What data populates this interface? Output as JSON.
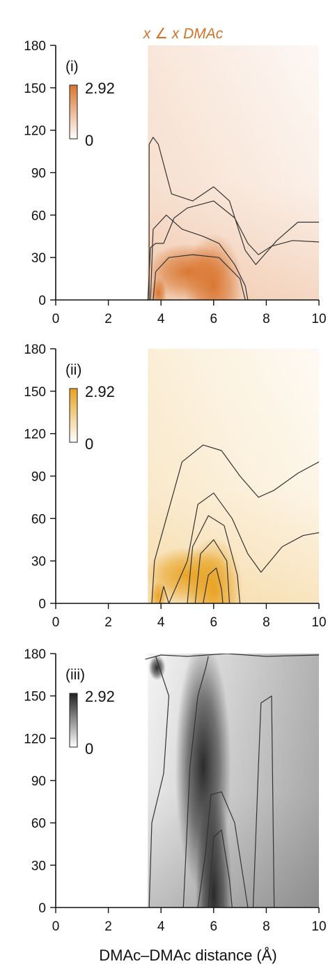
{
  "figure": {
    "top_label": "x ∠ x DMAc",
    "top_label_color": "#d0732a",
    "xlabel": "DMAc–DMAc distance (Å)"
  },
  "chart_data": [
    {
      "type": "heatmap",
      "tag": "(i)",
      "colormap_color": "#d9742d",
      "colorbar": {
        "max_label": "2.92",
        "min_label": "0",
        "range": [
          0,
          2.92
        ]
      },
      "xlim": [
        0,
        10
      ],
      "ylim": [
        0,
        180
      ],
      "x_ticks": [
        "0",
        "2",
        "4",
        "6",
        "8",
        "10"
      ],
      "y_ticks": [
        "0",
        "30",
        "60",
        "90",
        "120",
        "150",
        "180"
      ],
      "contour_lines": [
        [
          [
            3.55,
            0
          ],
          [
            3.55,
            110
          ],
          [
            3.7,
            115
          ],
          [
            3.9,
            110
          ],
          [
            4.4,
            75
          ],
          [
            5.2,
            70
          ],
          [
            6.0,
            80
          ],
          [
            6.6,
            70
          ],
          [
            7.2,
            35
          ],
          [
            7.6,
            25
          ],
          [
            8.4,
            42
          ],
          [
            9.2,
            55
          ],
          [
            10.0,
            55
          ]
        ],
        [
          [
            3.6,
            0
          ],
          [
            3.7,
            50
          ],
          [
            4.2,
            60
          ],
          [
            4.8,
            50
          ],
          [
            5.6,
            45
          ],
          [
            6.2,
            40
          ],
          [
            6.8,
            25
          ],
          [
            7.2,
            10
          ],
          [
            7.3,
            0
          ]
        ],
        [
          [
            3.7,
            0
          ],
          [
            3.8,
            20
          ],
          [
            4.3,
            30
          ],
          [
            5.2,
            32
          ],
          [
            6.2,
            30
          ],
          [
            7.0,
            15
          ],
          [
            7.2,
            0
          ]
        ],
        [
          [
            3.5,
            0
          ],
          [
            3.6,
            37
          ],
          [
            3.8,
            40
          ],
          [
            4.1,
            40
          ],
          [
            4.5,
            58
          ],
          [
            5.0,
            65
          ],
          [
            6.0,
            70
          ],
          [
            6.8,
            58
          ],
          [
            7.3,
            40
          ],
          [
            7.7,
            32
          ],
          [
            8.2,
            38
          ],
          [
            9.0,
            42
          ],
          [
            10.0,
            41
          ]
        ]
      ]
    },
    {
      "type": "heatmap",
      "tag": "(ii)",
      "colormap_color": "#e8a11f",
      "colorbar": {
        "max_label": "2.92",
        "min_label": "0",
        "range": [
          0,
          2.92
        ]
      },
      "xlim": [
        0,
        10
      ],
      "ylim": [
        0,
        180
      ],
      "x_ticks": [
        "0",
        "2",
        "4",
        "6",
        "8",
        "10"
      ],
      "y_ticks": [
        "0",
        "30",
        "60",
        "90",
        "120",
        "150",
        "180"
      ],
      "contour_lines": [
        [
          [
            3.65,
            0
          ],
          [
            3.75,
            30
          ],
          [
            4.2,
            60
          ],
          [
            4.8,
            100
          ],
          [
            5.6,
            112
          ],
          [
            6.3,
            108
          ],
          [
            7.0,
            90
          ],
          [
            7.7,
            75
          ],
          [
            8.3,
            80
          ],
          [
            9.2,
            92
          ],
          [
            10.0,
            100
          ]
        ],
        [
          [
            4.3,
            0
          ],
          [
            5.0,
            30
          ],
          [
            5.4,
            70
          ],
          [
            6.0,
            78
          ],
          [
            6.7,
            60
          ],
          [
            7.3,
            35
          ],
          [
            7.8,
            22
          ],
          [
            8.6,
            40
          ],
          [
            9.4,
            48
          ],
          [
            10.0,
            50
          ]
        ],
        [
          [
            3.95,
            0
          ],
          [
            4.1,
            12
          ],
          [
            4.3,
            0
          ]
        ],
        [
          [
            5.0,
            0
          ],
          [
            5.2,
            40
          ],
          [
            5.8,
            62
          ],
          [
            6.4,
            55
          ],
          [
            6.9,
            20
          ],
          [
            7.0,
            0
          ]
        ],
        [
          [
            5.3,
            0
          ],
          [
            5.5,
            35
          ],
          [
            6.0,
            45
          ],
          [
            6.5,
            30
          ],
          [
            6.6,
            0
          ]
        ],
        [
          [
            5.6,
            0
          ],
          [
            5.8,
            20
          ],
          [
            6.1,
            25
          ],
          [
            6.3,
            10
          ],
          [
            6.35,
            0
          ]
        ]
      ]
    },
    {
      "type": "heatmap",
      "tag": "(iii)",
      "colormap_color": "#222222",
      "colorbar": {
        "max_label": "2.92",
        "min_label": "0",
        "range": [
          0,
          2.92
        ]
      },
      "xlim": [
        0,
        10
      ],
      "ylim": [
        0,
        180
      ],
      "x_ticks": [
        "0",
        "2",
        "4",
        "6",
        "8",
        "10"
      ],
      "y_ticks": [
        "0",
        "30",
        "60",
        "90",
        "120",
        "150",
        "180"
      ],
      "contour_lines": [
        [
          [
            3.4,
            176
          ],
          [
            4.0,
            179
          ],
          [
            5.0,
            178
          ],
          [
            6.5,
            180
          ],
          [
            8.0,
            178
          ],
          [
            10.0,
            179
          ]
        ],
        [
          [
            3.55,
            0
          ],
          [
            3.65,
            60
          ],
          [
            4.1,
            95
          ],
          [
            4.3,
            150
          ],
          [
            3.8,
            178
          ]
        ],
        [
          [
            4.85,
            0
          ],
          [
            5.1,
            100
          ],
          [
            5.4,
            150
          ],
          [
            5.7,
            170
          ],
          [
            5.8,
            178
          ]
        ],
        [
          [
            5.4,
            0
          ],
          [
            5.7,
            40
          ],
          [
            5.9,
            80
          ],
          [
            6.3,
            82
          ],
          [
            6.8,
            60
          ],
          [
            7.3,
            0
          ]
        ],
        [
          [
            5.8,
            0
          ],
          [
            6.0,
            50
          ],
          [
            6.3,
            55
          ],
          [
            6.6,
            20
          ],
          [
            6.7,
            0
          ]
        ],
        [
          [
            7.5,
            0
          ],
          [
            7.7,
            100
          ],
          [
            7.8,
            145
          ],
          [
            8.2,
            150
          ],
          [
            8.3,
            0
          ]
        ]
      ]
    }
  ]
}
